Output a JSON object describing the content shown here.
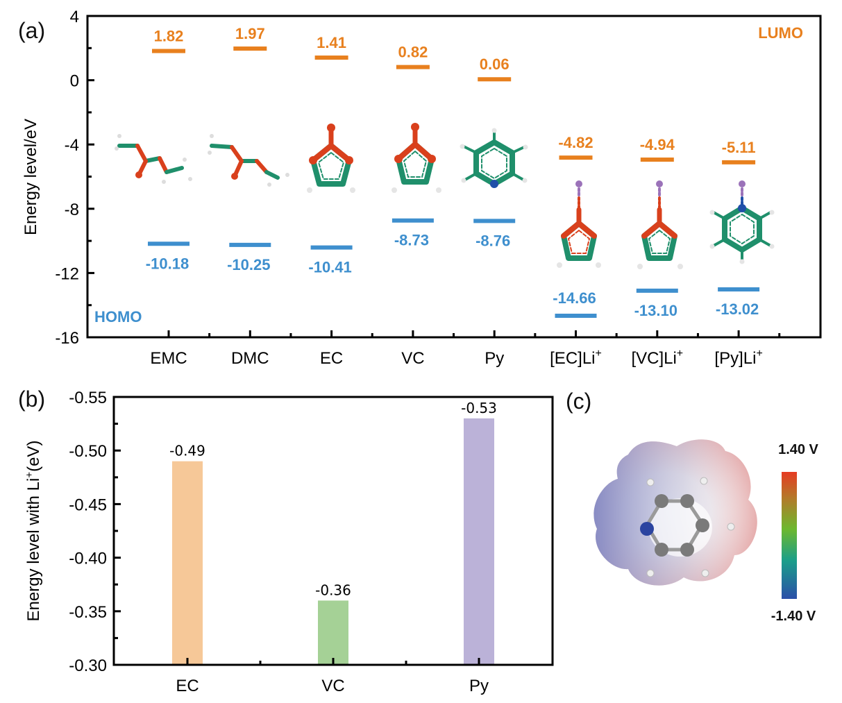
{
  "chart_data": [
    {
      "panel": "(a)",
      "type": "energy-level diagram",
      "ylabel": "Energy level/eV",
      "xlabel": "",
      "ylim": [
        -16,
        4
      ],
      "yticks": [
        "4",
        "0",
        "-4",
        "-8",
        "-12",
        "-16"
      ],
      "ytick_values": [
        4,
        0,
        -4,
        -8,
        -12,
        -16
      ],
      "grid": false,
      "categories": [
        "EMC",
        "DMC",
        "EC",
        "VC",
        "Py",
        "[EC]Li",
        "[VC]Li",
        "[Py]Li"
      ],
      "category_superscripts": [
        "",
        "",
        "",
        "",
        "",
        "+",
        "+",
        "+"
      ],
      "series": [
        {
          "name": "LUMO",
          "color": "#E8801E",
          "values": [
            1.82,
            1.97,
            1.41,
            0.82,
            0.06,
            -4.82,
            -4.94,
            -5.11
          ],
          "labels": [
            "1.82",
            "1.97",
            "1.41",
            "0.82",
            "0.06",
            "-4.82",
            "-4.94",
            "-5.11"
          ],
          "legend_position": "top-right"
        },
        {
          "name": "HOMO",
          "color": "#3E8FCE",
          "values": [
            -10.18,
            -10.25,
            -10.41,
            -8.73,
            -8.76,
            -14.66,
            -13.1,
            -13.02
          ],
          "labels": [
            "-10.18",
            "-10.25",
            "-10.41",
            "-8.73",
            "-8.76",
            "-14.66",
            "-13.10",
            "-13.02"
          ],
          "legend_position": "bottom-left"
        }
      ],
      "molecule_images": [
        "EMC structure",
        "DMC structure",
        "EC structure",
        "VC structure",
        "Pyridine structure",
        "EC-Li+ complex",
        "VC-Li+ complex",
        "Py-Li+ complex"
      ]
    },
    {
      "panel": "(b)",
      "type": "bar",
      "ylabel": "Energy level with Li",
      "ylabel_superscript": "+",
      "ylabel_suffix": "(eV)",
      "xlabel": "",
      "ylim": [
        -0.3,
        -0.55
      ],
      "yaxis_inverted": true,
      "yticks": [
        "-0.55",
        "-0.50",
        "-0.45",
        "-0.40",
        "-0.35",
        "-0.30"
      ],
      "ytick_values": [
        -0.55,
        -0.5,
        -0.45,
        -0.4,
        -0.35,
        -0.3
      ],
      "grid": false,
      "categories": [
        "EC",
        "VC",
        "Py"
      ],
      "values": [
        -0.49,
        -0.36,
        -0.53
      ],
      "labels": [
        "-0.49",
        "-0.36",
        "-0.53"
      ],
      "colors": [
        "#F6C898",
        "#A5D196",
        "#BBB2D8"
      ]
    },
    {
      "panel": "(c)",
      "type": "electrostatic potential map",
      "subject": "Pyridine",
      "colorbar": {
        "max_label": "1.40 V",
        "min_label": "-1.40 V",
        "max_value": 1.4,
        "min_value": -1.4,
        "colors": [
          "#2B4FA8",
          "#1A9E8A",
          "#6DB82E",
          "#E63B22"
        ]
      }
    }
  ]
}
